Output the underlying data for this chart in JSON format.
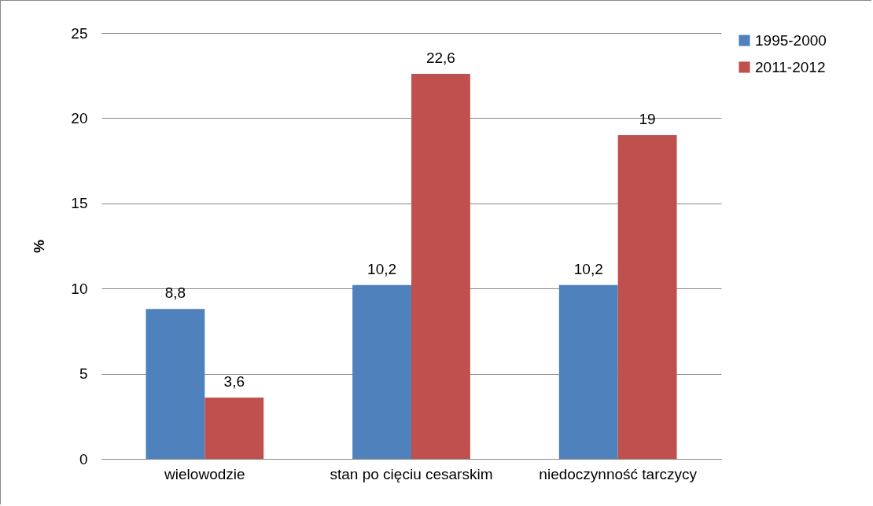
{
  "chart_data": {
    "type": "bar",
    "ylabel": "%",
    "categories": [
      "wielowodzie",
      "stan po cięciu cesarskim",
      "niedoczynność tarczycy"
    ],
    "series": [
      {
        "name": "1995-2000",
        "color": "#4f81bd",
        "values": [
          8.8,
          10.2,
          10.2
        ],
        "value_labels": [
          "8,8",
          "10,2",
          "10,2"
        ]
      },
      {
        "name": "2011-2012",
        "color": "#c0504d",
        "values": [
          3.6,
          22.6,
          19
        ],
        "value_labels": [
          "3,6",
          "22,6",
          "19"
        ]
      }
    ],
    "ylim": [
      0,
      25
    ],
    "yticks": [
      0,
      5,
      10,
      15,
      20,
      25
    ],
    "grid": "y",
    "legend": "right"
  }
}
